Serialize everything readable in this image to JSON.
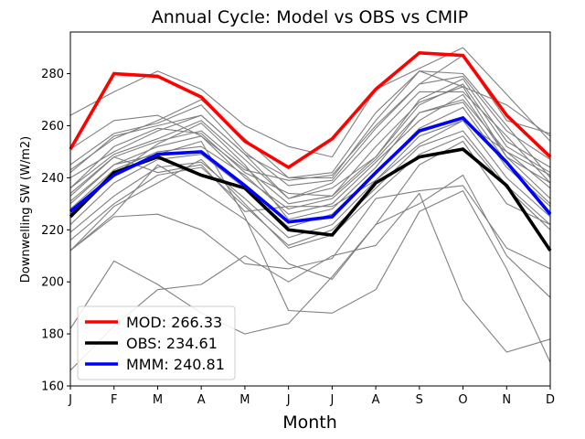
{
  "chart_data": {
    "type": "line",
    "title": "Annual Cycle: Model vs OBS vs CMIP",
    "xlabel": "Month",
    "ylabel": "Downwelling SW (W/m2)",
    "categories": [
      "J",
      "F",
      "M",
      "A",
      "M",
      "J",
      "J",
      "A",
      "S",
      "O",
      "N",
      "D"
    ],
    "ylim": [
      160,
      296
    ],
    "yticks": [
      160,
      180,
      200,
      220,
      240,
      260,
      280
    ],
    "grid": false,
    "legend_position": "lower-left",
    "highlight_series": [
      {
        "name": "MOD",
        "label": "MOD: 266.33",
        "color": "#ff0000",
        "values": [
          251,
          280,
          279,
          271,
          254,
          244,
          255,
          274,
          288,
          287,
          264,
          248
        ]
      },
      {
        "name": "OBS",
        "label": "OBS: 234.61",
        "color": "#000000",
        "values": [
          225,
          242,
          248,
          241,
          236,
          220,
          218,
          238,
          248,
          251,
          237,
          212
        ]
      },
      {
        "name": "MMM",
        "label": "MMM: 240.81",
        "color": "#0000ff",
        "values": [
          227,
          241,
          249,
          250,
          237,
          223,
          225,
          242,
          258,
          263,
          246,
          226
        ]
      }
    ],
    "ensemble_color": "#808080",
    "ensemble_series": [
      {
        "name": "cmip-01",
        "values": [
          264,
          273,
          281,
          274,
          260,
          252,
          248,
          274,
          282,
          290,
          272,
          254
        ]
      },
      {
        "name": "cmip-02",
        "values": [
          251,
          262,
          264,
          256,
          243,
          239,
          241,
          260,
          276,
          287,
          262,
          257
        ]
      },
      {
        "name": "cmip-03",
        "values": [
          245,
          257,
          261,
          268,
          250,
          237,
          239,
          259,
          276,
          279,
          258,
          247
        ]
      },
      {
        "name": "cmip-04",
        "values": [
          240,
          250,
          258,
          264,
          249,
          232,
          238,
          256,
          273,
          273,
          256,
          238
        ]
      },
      {
        "name": "cmip-05",
        "values": [
          236,
          249,
          255,
          262,
          247,
          232,
          236,
          248,
          270,
          278,
          254,
          244
        ]
      },
      {
        "name": "cmip-06",
        "values": [
          233,
          248,
          254,
          258,
          244,
          230,
          233,
          248,
          268,
          276,
          252,
          242
        ]
      },
      {
        "name": "cmip-07",
        "values": [
          231,
          245,
          252,
          256,
          240,
          228,
          232,
          247,
          265,
          270,
          250,
          236
        ]
      },
      {
        "name": "cmip-08",
        "values": [
          228,
          243,
          250,
          252,
          241,
          226,
          230,
          246,
          262,
          272,
          248,
          232
        ]
      },
      {
        "name": "cmip-09",
        "values": [
          226,
          241,
          253,
          261,
          245,
          224,
          228,
          244,
          265,
          269,
          246,
          230
        ]
      },
      {
        "name": "cmip-10",
        "values": [
          222,
          238,
          247,
          249,
          236,
          221,
          226,
          242,
          259,
          267,
          244,
          229
        ]
      },
      {
        "name": "cmip-11",
        "values": [
          219,
          233,
          244,
          246,
          232,
          217,
          222,
          239,
          256,
          262,
          240,
          225
        ]
      },
      {
        "name": "cmip-12",
        "values": [
          216,
          230,
          241,
          244,
          229,
          214,
          220,
          236,
          252,
          258,
          237,
          222
        ]
      },
      {
        "name": "cmip-13",
        "values": [
          212,
          229,
          238,
          247,
          230,
          213,
          218,
          234,
          249,
          256,
          236,
          220
        ]
      },
      {
        "name": "cmip-14",
        "values": [
          212,
          225,
          226,
          220,
          207,
          205,
          209,
          232,
          235,
          237,
          213,
          205
        ]
      },
      {
        "name": "cmip-15",
        "values": [
          234,
          248,
          242,
          245,
          227,
          229,
          229,
          239,
          253,
          262,
          250,
          241
        ]
      },
      {
        "name": "cmip-16",
        "values": [
          236,
          252,
          259,
          257,
          242,
          234,
          233,
          252,
          269,
          275,
          248,
          238
        ]
      },
      {
        "name": "cmip-17",
        "values": [
          182,
          208,
          199,
          188,
          180,
          184,
          202,
          222,
          230,
          241,
          210,
          194
        ]
      },
      {
        "name": "cmip-18",
        "values": [
          166,
          183,
          197,
          199,
          210,
          200,
          210,
          214,
          234,
          193,
          173,
          178
        ]
      },
      {
        "name": "cmip-19",
        "values": [
          230,
          245,
          249,
          254,
          225,
          189,
          188,
          197,
          227,
          235,
          205,
          169
        ]
      },
      {
        "name": "cmip-20",
        "values": [
          243,
          255,
          262,
          270,
          255,
          240,
          240,
          262,
          281,
          280,
          260,
          240
        ]
      },
      {
        "name": "cmip-21",
        "values": [
          242,
          256,
          260,
          264,
          249,
          240,
          242,
          265,
          281,
          275,
          268,
          256
        ]
      },
      {
        "name": "cmip-22",
        "values": [
          212,
          226,
          245,
          235,
          224,
          207,
          201,
          222,
          245,
          254,
          230,
          222
        ]
      }
    ]
  }
}
